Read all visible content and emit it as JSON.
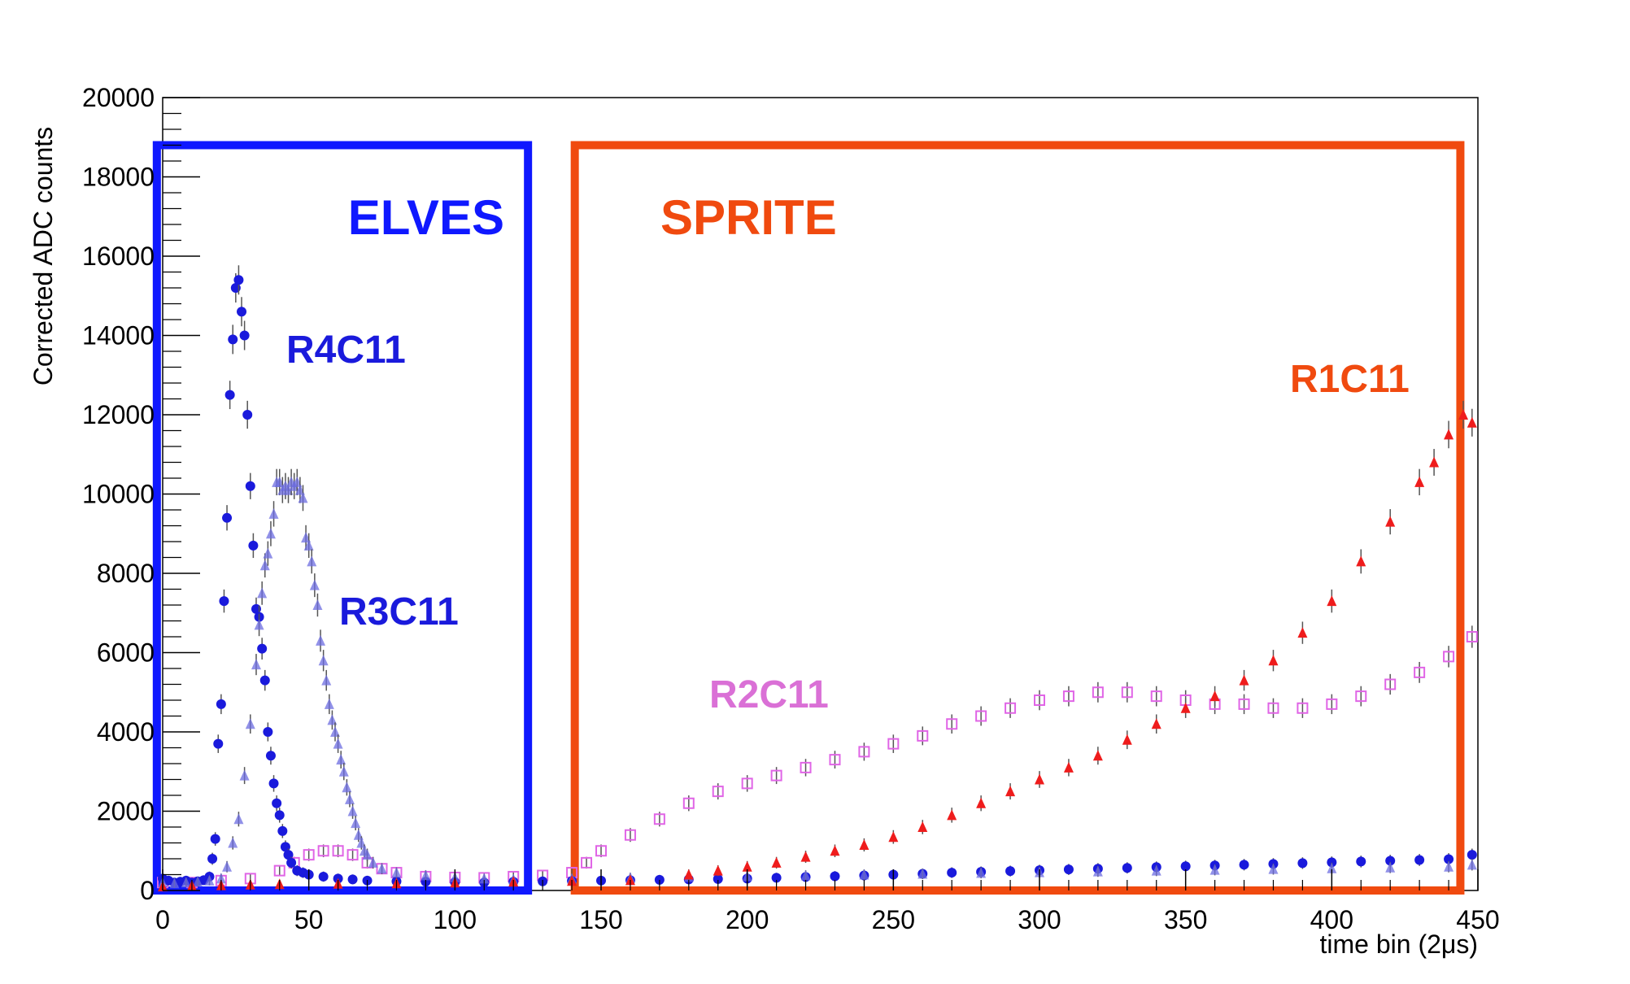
{
  "chart_data": {
    "type": "scatter",
    "title": "",
    "xlabel": "time bin (2μs)",
    "ylabel": "Corrected ADC counts",
    "xlim": [
      0,
      450
    ],
    "ylim": [
      0,
      20000
    ],
    "x_ticks": [
      "0",
      "50",
      "100",
      "150",
      "200",
      "250",
      "300",
      "350",
      "400",
      "450"
    ],
    "y_ticks": [
      "0",
      "2000",
      "4000",
      "6000",
      "8000",
      "10000",
      "12000",
      "14000",
      "16000",
      "18000",
      "20000"
    ],
    "regions": [
      {
        "name": "ELVES",
        "x_range": [
          -2,
          125
        ],
        "y_range": [
          0,
          18800
        ],
        "color": "#0f18ff"
      },
      {
        "name": "SPRITE",
        "x_range": [
          141,
          444
        ],
        "y_range": [
          0,
          18800
        ],
        "color": "#f04a0f"
      }
    ],
    "series": [
      {
        "name": "R4C11",
        "marker": "circle",
        "color": "#1a1adc",
        "points": [
          [
            0,
            300
          ],
          [
            2,
            250
          ],
          [
            4,
            200
          ],
          [
            6,
            220
          ],
          [
            8,
            250
          ],
          [
            10,
            200
          ],
          [
            12,
            230
          ],
          [
            14,
            260
          ],
          [
            16,
            350
          ],
          [
            17,
            800
          ],
          [
            18,
            1300
          ],
          [
            19,
            3700
          ],
          [
            20,
            4700
          ],
          [
            21,
            7300
          ],
          [
            22,
            9400
          ],
          [
            23,
            12500
          ],
          [
            24,
            13900
          ],
          [
            25,
            15200
          ],
          [
            26,
            15400
          ],
          [
            27,
            14600
          ],
          [
            28,
            14000
          ],
          [
            29,
            12000
          ],
          [
            30,
            10200
          ],
          [
            31,
            8700
          ],
          [
            32,
            7100
          ],
          [
            33,
            6900
          ],
          [
            34,
            6100
          ],
          [
            35,
            5300
          ],
          [
            36,
            4000
          ],
          [
            37,
            3400
          ],
          [
            38,
            2700
          ],
          [
            39,
            2200
          ],
          [
            40,
            1900
          ],
          [
            41,
            1500
          ],
          [
            42,
            1100
          ],
          [
            43,
            900
          ],
          [
            44,
            700
          ],
          [
            46,
            500
          ],
          [
            48,
            450
          ],
          [
            50,
            400
          ],
          [
            55,
            350
          ],
          [
            60,
            300
          ],
          [
            65,
            280
          ],
          [
            70,
            250
          ],
          [
            80,
            230
          ],
          [
            90,
            220
          ],
          [
            100,
            210
          ],
          [
            110,
            200
          ],
          [
            120,
            220
          ],
          [
            130,
            230
          ],
          [
            140,
            240
          ],
          [
            150,
            250
          ],
          [
            160,
            260
          ],
          [
            170,
            270
          ],
          [
            180,
            280
          ],
          [
            190,
            290
          ],
          [
            200,
            300
          ],
          [
            210,
            320
          ],
          [
            220,
            340
          ],
          [
            230,
            360
          ],
          [
            240,
            380
          ],
          [
            250,
            400
          ],
          [
            260,
            420
          ],
          [
            270,
            450
          ],
          [
            280,
            470
          ],
          [
            290,
            490
          ],
          [
            300,
            510
          ],
          [
            310,
            530
          ],
          [
            320,
            550
          ],
          [
            330,
            570
          ],
          [
            340,
            590
          ],
          [
            350,
            610
          ],
          [
            360,
            630
          ],
          [
            370,
            650
          ],
          [
            380,
            670
          ],
          [
            390,
            690
          ],
          [
            400,
            710
          ],
          [
            410,
            730
          ],
          [
            420,
            750
          ],
          [
            430,
            770
          ],
          [
            440,
            790
          ],
          [
            448,
            900
          ]
        ]
      },
      {
        "name": "R3C11",
        "marker": "triangle",
        "color": "#6c6ce0",
        "points": [
          [
            0,
            200
          ],
          [
            4,
            180
          ],
          [
            8,
            200
          ],
          [
            12,
            220
          ],
          [
            16,
            250
          ],
          [
            20,
            300
          ],
          [
            22,
            600
          ],
          [
            24,
            1200
          ],
          [
            26,
            1800
          ],
          [
            28,
            2900
          ],
          [
            30,
            4200
          ],
          [
            32,
            5700
          ],
          [
            33,
            6700
          ],
          [
            34,
            7500
          ],
          [
            35,
            8200
          ],
          [
            36,
            8500
          ],
          [
            37,
            9000
          ],
          [
            38,
            9500
          ],
          [
            39,
            10300
          ],
          [
            40,
            10300
          ],
          [
            41,
            10100
          ],
          [
            42,
            10200
          ],
          [
            43,
            10100
          ],
          [
            44,
            10300
          ],
          [
            45,
            10200
          ],
          [
            46,
            10300
          ],
          [
            47,
            10100
          ],
          [
            48,
            9900
          ],
          [
            49,
            8900
          ],
          [
            50,
            8700
          ],
          [
            51,
            8300
          ],
          [
            52,
            7700
          ],
          [
            53,
            7200
          ],
          [
            54,
            6300
          ],
          [
            55,
            5800
          ],
          [
            56,
            5300
          ],
          [
            57,
            4700
          ],
          [
            58,
            4300
          ],
          [
            59,
            4000
          ],
          [
            60,
            3700
          ],
          [
            61,
            3300
          ],
          [
            62,
            3000
          ],
          [
            63,
            2600
          ],
          [
            64,
            2300
          ],
          [
            65,
            2000
          ],
          [
            66,
            1700
          ],
          [
            67,
            1400
          ],
          [
            68,
            1200
          ],
          [
            69,
            1000
          ],
          [
            70,
            900
          ],
          [
            72,
            700
          ],
          [
            75,
            550
          ],
          [
            80,
            450
          ],
          [
            90,
            380
          ],
          [
            100,
            330
          ],
          [
            110,
            300
          ],
          [
            120,
            280
          ],
          [
            140,
            300
          ],
          [
            160,
            320
          ],
          [
            180,
            340
          ],
          [
            200,
            360
          ],
          [
            220,
            380
          ],
          [
            240,
            400
          ],
          [
            260,
            420
          ],
          [
            280,
            440
          ],
          [
            300,
            460
          ],
          [
            320,
            480
          ],
          [
            340,
            500
          ],
          [
            360,
            520
          ],
          [
            380,
            540
          ],
          [
            400,
            560
          ],
          [
            420,
            580
          ],
          [
            440,
            600
          ],
          [
            448,
            650
          ]
        ]
      },
      {
        "name": "R2C11",
        "marker": "open-square",
        "color": "#e065e6",
        "points": [
          [
            0,
            200
          ],
          [
            10,
            200
          ],
          [
            20,
            250
          ],
          [
            30,
            300
          ],
          [
            40,
            500
          ],
          [
            45,
            700
          ],
          [
            50,
            900
          ],
          [
            55,
            1000
          ],
          [
            60,
            1000
          ],
          [
            65,
            900
          ],
          [
            70,
            700
          ],
          [
            75,
            550
          ],
          [
            80,
            450
          ],
          [
            90,
            350
          ],
          [
            100,
            330
          ],
          [
            110,
            320
          ],
          [
            120,
            350
          ],
          [
            130,
            380
          ],
          [
            140,
            450
          ],
          [
            145,
            700
          ],
          [
            150,
            1000
          ],
          [
            160,
            1400
          ],
          [
            170,
            1800
          ],
          [
            180,
            2200
          ],
          [
            190,
            2500
          ],
          [
            200,
            2700
          ],
          [
            210,
            2900
          ],
          [
            220,
            3100
          ],
          [
            230,
            3300
          ],
          [
            240,
            3500
          ],
          [
            250,
            3700
          ],
          [
            260,
            3900
          ],
          [
            270,
            4200
          ],
          [
            280,
            4400
          ],
          [
            290,
            4600
          ],
          [
            300,
            4800
          ],
          [
            310,
            4900
          ],
          [
            320,
            5000
          ],
          [
            330,
            5000
          ],
          [
            340,
            4900
          ],
          [
            350,
            4800
          ],
          [
            360,
            4700
          ],
          [
            370,
            4700
          ],
          [
            380,
            4600
          ],
          [
            390,
            4600
          ],
          [
            400,
            4700
          ],
          [
            410,
            4900
          ],
          [
            420,
            5200
          ],
          [
            430,
            5500
          ],
          [
            440,
            5900
          ],
          [
            448,
            6400
          ]
        ]
      },
      {
        "name": "R1C11",
        "marker": "triangle",
        "color": "#ef1c1c",
        "points": [
          [
            0,
            100
          ],
          [
            10,
            120
          ],
          [
            20,
            130
          ],
          [
            30,
            150
          ],
          [
            40,
            160
          ],
          [
            60,
            170
          ],
          [
            80,
            180
          ],
          [
            100,
            200
          ],
          [
            120,
            220
          ],
          [
            140,
            240
          ],
          [
            160,
            260
          ],
          [
            180,
            400
          ],
          [
            190,
            500
          ],
          [
            200,
            600
          ],
          [
            210,
            700
          ],
          [
            220,
            850
          ],
          [
            230,
            1000
          ],
          [
            240,
            1150
          ],
          [
            250,
            1350
          ],
          [
            260,
            1600
          ],
          [
            270,
            1900
          ],
          [
            280,
            2200
          ],
          [
            290,
            2500
          ],
          [
            300,
            2800
          ],
          [
            310,
            3100
          ],
          [
            320,
            3400
          ],
          [
            330,
            3800
          ],
          [
            340,
            4200
          ],
          [
            350,
            4600
          ],
          [
            360,
            4900
          ],
          [
            370,
            5300
          ],
          [
            380,
            5800
          ],
          [
            390,
            6500
          ],
          [
            400,
            7300
          ],
          [
            410,
            8300
          ],
          [
            420,
            9300
          ],
          [
            430,
            10300
          ],
          [
            435,
            10800
          ],
          [
            440,
            11500
          ],
          [
            445,
            12000
          ],
          [
            448,
            11800
          ]
        ]
      }
    ]
  }
}
